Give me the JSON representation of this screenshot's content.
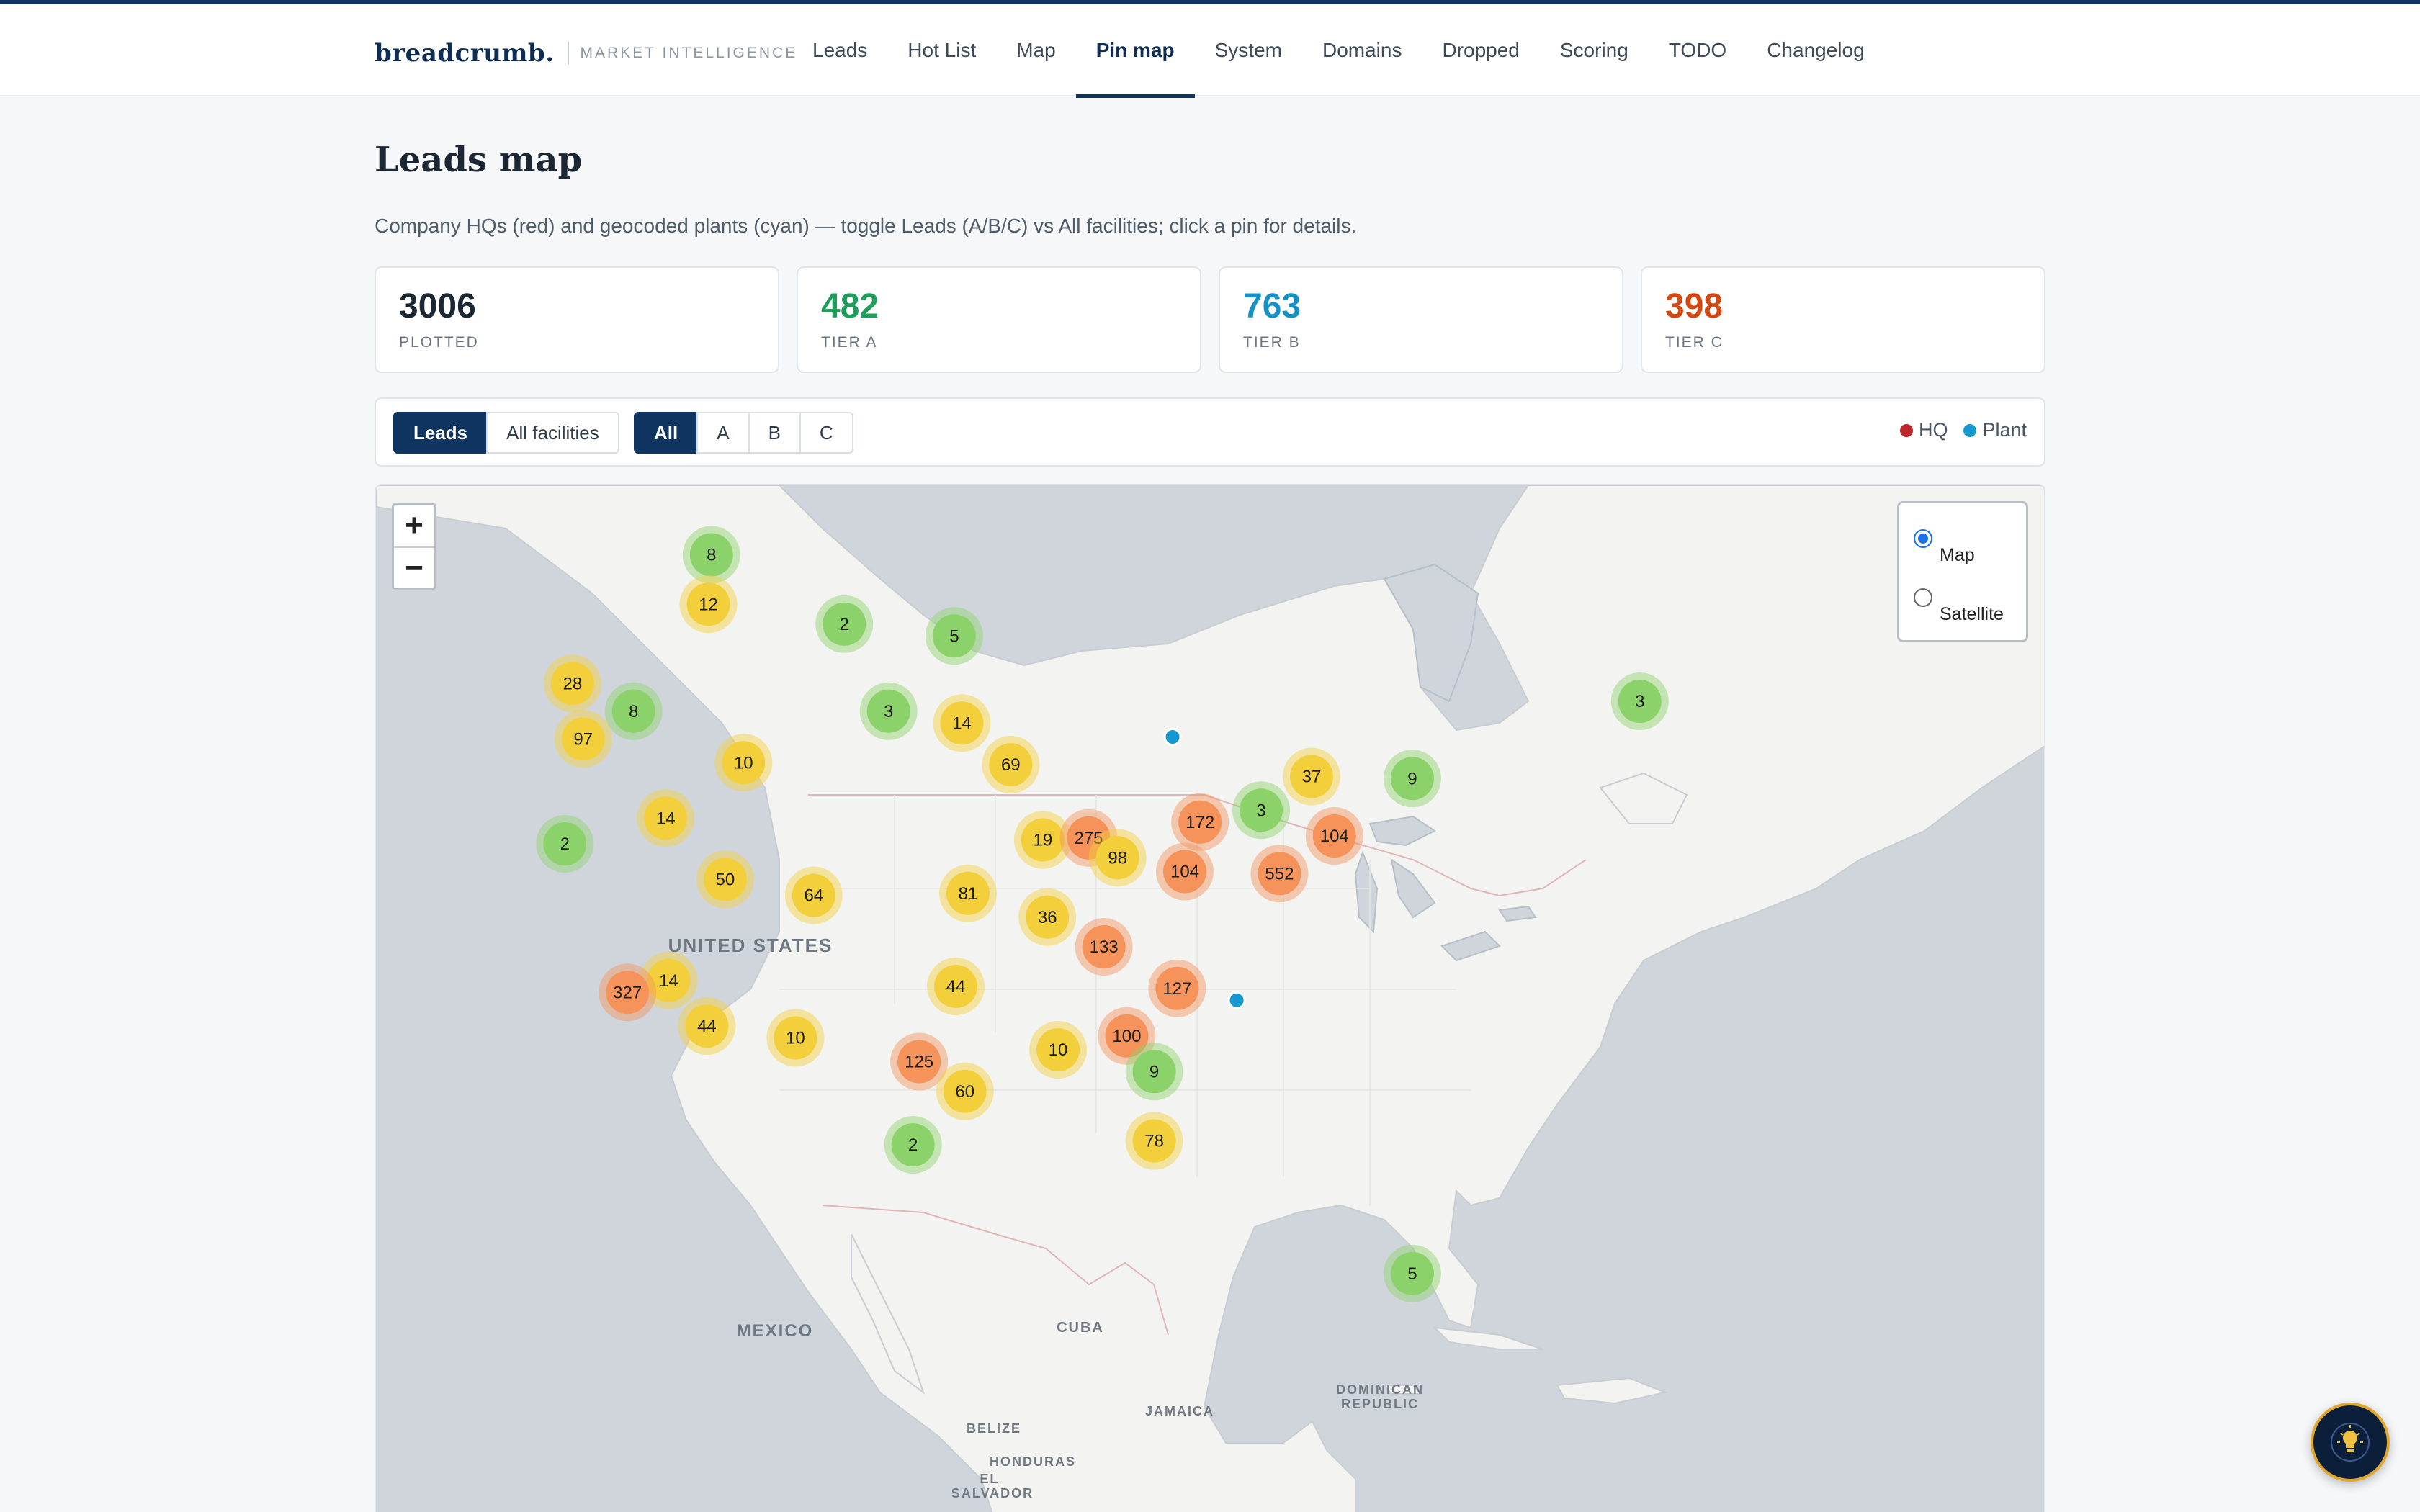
{
  "brand": {
    "name": "breadcrumb.",
    "tagline": "MARKET INTELLIGENCE"
  },
  "nav": {
    "items": [
      {
        "label": "Leads",
        "id": "leads"
      },
      {
        "label": "Hot List",
        "id": "hot-list"
      },
      {
        "label": "Map",
        "id": "map"
      },
      {
        "label": "Pin map",
        "id": "pin-map",
        "active": true
      },
      {
        "label": "System",
        "id": "system"
      },
      {
        "label": "Domains",
        "id": "domains"
      },
      {
        "label": "Dropped",
        "id": "dropped"
      },
      {
        "label": "Scoring",
        "id": "scoring"
      },
      {
        "label": "TODO",
        "id": "todo"
      },
      {
        "label": "Changelog",
        "id": "changelog"
      }
    ]
  },
  "page": {
    "title": "Leads map",
    "subtitle": "Company HQs (red) and geocoded plants (cyan) — toggle Leads (A/B/C) vs All facilities; click a pin for details."
  },
  "stats": [
    {
      "value": "3006",
      "label": "PLOTTED",
      "color": "#1b2733"
    },
    {
      "value": "482",
      "label": "TIER A",
      "color": "#1e9e5a"
    },
    {
      "value": "763",
      "label": "TIER B",
      "color": "#1591c4"
    },
    {
      "value": "398",
      "label": "TIER C",
      "color": "#d2460f"
    }
  ],
  "filters": {
    "mode": [
      {
        "label": "Leads",
        "active": true
      },
      {
        "label": "All facilities",
        "active": false
      }
    ],
    "tier": [
      {
        "label": "All",
        "active": true
      },
      {
        "label": "A",
        "active": false
      },
      {
        "label": "B",
        "active": false
      },
      {
        "label": "C",
        "active": false
      }
    ]
  },
  "legend": {
    "hq": {
      "label": "HQ",
      "color": "#c0262d"
    },
    "plant": {
      "label": "Plant",
      "color": "#1597d0"
    }
  },
  "map": {
    "zoom_in": "+",
    "zoom_out": "−",
    "layers": [
      {
        "label": "Map",
        "checked": true
      },
      {
        "label": "Satellite",
        "checked": false
      }
    ],
    "place_labels": [
      "UNITED STATES",
      "MEXICO",
      "CUBA",
      "JAMAICA",
      "DOMINICAN",
      "REPUBLIC",
      "BELIZE",
      "HONDURAS",
      "EL",
      "SALVADOR"
    ],
    "cluster_colors": {
      "small": "#8cd26a",
      "medium": "#f3d03b",
      "large": "#f5935a"
    },
    "clusters": [
      {
        "count": "8",
        "lon": -114.5,
        "lat": 55.7,
        "tier": "small"
      },
      {
        "count": "12",
        "lon": -114.7,
        "lat": 53.2,
        "tier": "medium"
      },
      {
        "count": "2",
        "lon": -105.8,
        "lat": 52.2,
        "tier": "small"
      },
      {
        "count": "5",
        "lon": -98.6,
        "lat": 51.6,
        "tier": "small"
      },
      {
        "count": "28",
        "lon": -123.6,
        "lat": 49.2,
        "tier": "medium"
      },
      {
        "count": "8",
        "lon": -119.6,
        "lat": 47.8,
        "tier": "small"
      },
      {
        "count": "3",
        "lon": -102.9,
        "lat": 47.8,
        "tier": "small"
      },
      {
        "count": "14",
        "lon": -98.1,
        "lat": 47.2,
        "tier": "medium"
      },
      {
        "count": "97",
        "lon": -122.9,
        "lat": 46.4,
        "tier": "medium"
      },
      {
        "count": "10",
        "lon": -112.4,
        "lat": 45.2,
        "tier": "medium"
      },
      {
        "count": "69",
        "lon": -94.9,
        "lat": 45.1,
        "tier": "medium"
      },
      {
        "count": "37",
        "lon": -75.2,
        "lat": 44.5,
        "tier": "medium"
      },
      {
        "count": "9",
        "lon": -68.6,
        "lat": 44.4,
        "tier": "small"
      },
      {
        "count": "3",
        "lon": -53.7,
        "lat": 48.3,
        "tier": "small"
      },
      {
        "count": "3",
        "lon": -78.5,
        "lat": 42.8,
        "tier": "small"
      },
      {
        "count": "14",
        "lon": -117.5,
        "lat": 42.4,
        "tier": "medium"
      },
      {
        "count": "172",
        "lon": -82.5,
        "lat": 42.2,
        "tier": "large"
      },
      {
        "count": "104",
        "lon": -73.7,
        "lat": 41.5,
        "tier": "large"
      },
      {
        "count": "2",
        "lon": -124.1,
        "lat": 41.1,
        "tier": "small"
      },
      {
        "count": "19",
        "lon": -92.8,
        "lat": 41.3,
        "tier": "medium"
      },
      {
        "count": "275",
        "lon": -89.8,
        "lat": 41.4,
        "tier": "large"
      },
      {
        "count": "98",
        "lon": -87.9,
        "lat": 40.4,
        "tier": "medium"
      },
      {
        "count": "50",
        "lon": -113.6,
        "lat": 39.3,
        "tier": "medium"
      },
      {
        "count": "104",
        "lon": -83.5,
        "lat": 39.7,
        "tier": "large"
      },
      {
        "count": "552",
        "lon": -77.3,
        "lat": 39.6,
        "tier": "large"
      },
      {
        "count": "64",
        "lon": -107.8,
        "lat": 38.5,
        "tier": "medium"
      },
      {
        "count": "81",
        "lon": -97.7,
        "lat": 38.6,
        "tier": "medium"
      },
      {
        "count": "36",
        "lon": -92.5,
        "lat": 37.4,
        "tier": "medium"
      },
      {
        "count": "133",
        "lon": -88.8,
        "lat": 35.9,
        "tier": "large"
      },
      {
        "count": "14",
        "lon": -117.3,
        "lat": 34.2,
        "tier": "medium"
      },
      {
        "count": "327",
        "lon": -120.0,
        "lat": 33.6,
        "tier": "large"
      },
      {
        "count": "44",
        "lon": -98.5,
        "lat": 33.9,
        "tier": "medium"
      },
      {
        "count": "127",
        "lon": -84.0,
        "lat": 33.8,
        "tier": "large"
      },
      {
        "count": "44",
        "lon": -114.8,
        "lat": 31.9,
        "tier": "medium"
      },
      {
        "count": "10",
        "lon": -109.0,
        "lat": 31.3,
        "tier": "medium"
      },
      {
        "count": "100",
        "lon": -87.3,
        "lat": 31.4,
        "tier": "large"
      },
      {
        "count": "10",
        "lon": -91.8,
        "lat": 30.7,
        "tier": "medium"
      },
      {
        "count": "125",
        "lon": -100.9,
        "lat": 30.1,
        "tier": "large"
      },
      {
        "count": "9",
        "lon": -85.5,
        "lat": 29.6,
        "tier": "small"
      },
      {
        "count": "60",
        "lon": -97.9,
        "lat": 28.6,
        "tier": "medium"
      },
      {
        "count": "78",
        "lon": -85.5,
        "lat": 26.1,
        "tier": "medium"
      },
      {
        "count": "2",
        "lon": -101.3,
        "lat": 25.9,
        "tier": "small"
      },
      {
        "count": "5",
        "lon": -68.6,
        "lat": 19.4,
        "tier": "small"
      }
    ],
    "plants": [
      {
        "lon": -84.3,
        "lat": 46.5
      },
      {
        "lon": -80.1,
        "lat": 33.2
      }
    ]
  },
  "assistant": {
    "icon": "lightbulb-icon"
  }
}
